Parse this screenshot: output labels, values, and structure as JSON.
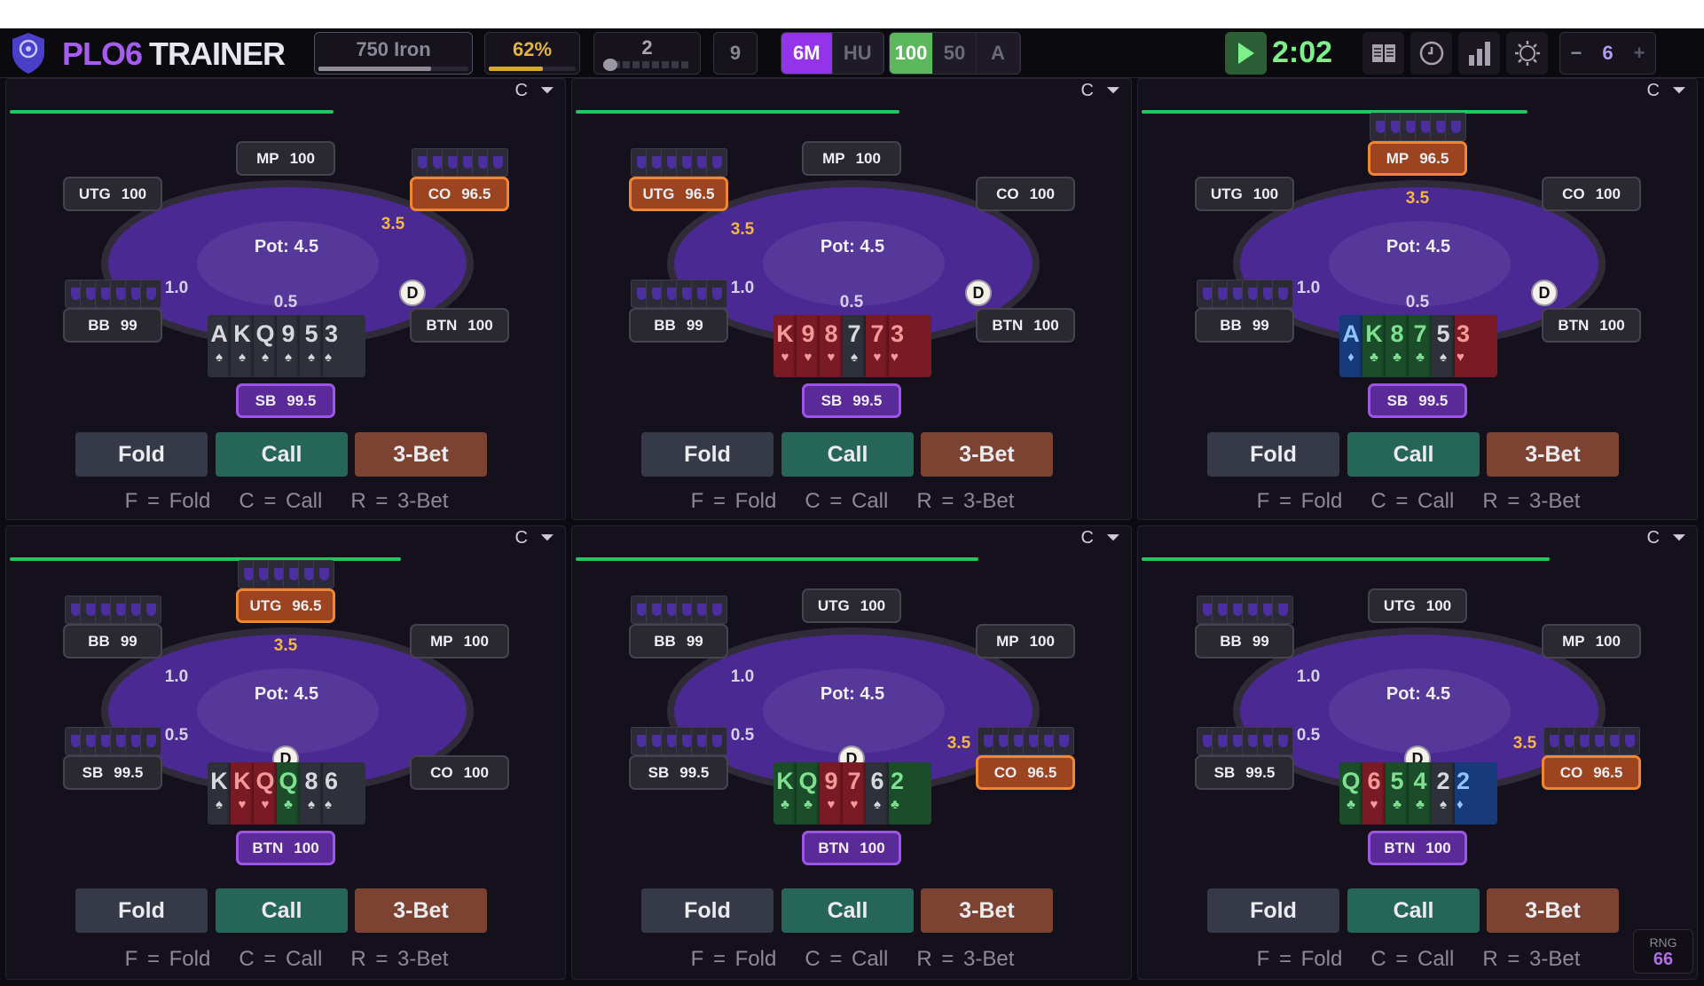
{
  "topbar": {
    "brand_a": "PLO6",
    "brand_b": "TRAINER",
    "rank": "750 Iron",
    "rank_progress": 0.75,
    "accuracy": "62%",
    "accuracy_progress": 0.62,
    "level": "2",
    "level_slider": 0.1,
    "count": "9",
    "modes": [
      {
        "label": "6M",
        "active": true
      },
      {
        "label": "HU",
        "active": false
      }
    ],
    "stacks": [
      {
        "label": "100",
        "active": true
      },
      {
        "label": "50",
        "active": false
      },
      {
        "label": "A",
        "active": false
      }
    ],
    "timer": "2:02",
    "icons": [
      "book-icon",
      "clock-icon",
      "stats-icon",
      "brightness-icon"
    ],
    "tables_minus": "−",
    "tables_count": "6",
    "tables_plus": "+"
  },
  "labels": {
    "pot_prefix": "Pot: ",
    "fold": "Fold",
    "call": "Call",
    "raise": "3-Bet",
    "hint": "F = Fold   C = Call   R = 3-Bet",
    "dealer": "D",
    "refresh": "C",
    "filter": "filter"
  },
  "colors": {
    "hero": "#5a2a99",
    "raiser": "#9c4420",
    "spade": "#2e313a",
    "heart": "#7a1a25",
    "club": "#1b4d2a",
    "diamond": "#173a7a"
  },
  "panels": [
    {
      "timer_progress": 0.58,
      "pot": "4.5",
      "dealer_seat": 5,
      "seats": [
        {
          "pos": "SB",
          "stack": "99.5",
          "state": "hero",
          "bet": "0.5"
        },
        {
          "pos": "BB",
          "stack": "99",
          "state": "in",
          "bet": "1.0"
        },
        {
          "pos": "UTG",
          "stack": "100",
          "state": "folded"
        },
        {
          "pos": "MP",
          "stack": "100",
          "state": "folded"
        },
        {
          "pos": "CO",
          "stack": "96.5",
          "state": "raiser",
          "bet": "3.5"
        },
        {
          "pos": "BTN",
          "stack": "100",
          "state": "folded"
        }
      ],
      "hand": [
        {
          "r": "A",
          "s": "spade"
        },
        {
          "r": "K",
          "s": "spade"
        },
        {
          "r": "Q",
          "s": "spade"
        },
        {
          "r": "9",
          "s": "spade"
        },
        {
          "r": "5",
          "s": "spade"
        },
        {
          "r": "3",
          "s": "spade"
        }
      ]
    },
    {
      "timer_progress": 0.58,
      "pot": "4.5",
      "dealer_seat": 5,
      "seats": [
        {
          "pos": "SB",
          "stack": "99.5",
          "state": "hero",
          "bet": "0.5"
        },
        {
          "pos": "BB",
          "stack": "99",
          "state": "in",
          "bet": "1.0"
        },
        {
          "pos": "UTG",
          "stack": "96.5",
          "state": "raiser",
          "bet": "3.5"
        },
        {
          "pos": "MP",
          "stack": "100",
          "state": "folded"
        },
        {
          "pos": "CO",
          "stack": "100",
          "state": "folded"
        },
        {
          "pos": "BTN",
          "stack": "100",
          "state": "folded"
        }
      ],
      "hand": [
        {
          "r": "K",
          "s": "heart"
        },
        {
          "r": "9",
          "s": "heart"
        },
        {
          "r": "8",
          "s": "heart"
        },
        {
          "r": "7",
          "s": "spade"
        },
        {
          "r": "7",
          "s": "heart"
        },
        {
          "r": "3",
          "s": "heart"
        }
      ]
    },
    {
      "timer_progress": 0.69,
      "pot": "4.5",
      "dealer_seat": 5,
      "seats": [
        {
          "pos": "SB",
          "stack": "99.5",
          "state": "hero",
          "bet": "0.5"
        },
        {
          "pos": "BB",
          "stack": "99",
          "state": "in",
          "bet": "1.0"
        },
        {
          "pos": "UTG",
          "stack": "100",
          "state": "folded"
        },
        {
          "pos": "MP",
          "stack": "96.5",
          "state": "raiser",
          "bet": "3.5"
        },
        {
          "pos": "CO",
          "stack": "100",
          "state": "folded"
        },
        {
          "pos": "BTN",
          "stack": "100",
          "state": "folded"
        }
      ],
      "hand": [
        {
          "r": "A",
          "s": "diamond"
        },
        {
          "r": "K",
          "s": "club"
        },
        {
          "r": "8",
          "s": "club"
        },
        {
          "r": "7",
          "s": "club"
        },
        {
          "r": "5",
          "s": "spade"
        },
        {
          "r": "3",
          "s": "heart"
        }
      ]
    },
    {
      "timer_progress": 0.7,
      "pot": "4.5",
      "dealer_seat": 0,
      "seats": [
        {
          "pos": "BTN",
          "stack": "100",
          "state": "hero"
        },
        {
          "pos": "SB",
          "stack": "99.5",
          "state": "in",
          "bet": "0.5"
        },
        {
          "pos": "BB",
          "stack": "99",
          "state": "in",
          "bet": "1.0"
        },
        {
          "pos": "UTG",
          "stack": "96.5",
          "state": "raiser",
          "bet": "3.5"
        },
        {
          "pos": "MP",
          "stack": "100",
          "state": "folded"
        },
        {
          "pos": "CO",
          "stack": "100",
          "state": "folded"
        }
      ],
      "hand": [
        {
          "r": "K",
          "s": "spade"
        },
        {
          "r": "K",
          "s": "heart"
        },
        {
          "r": "Q",
          "s": "heart"
        },
        {
          "r": "Q",
          "s": "club"
        },
        {
          "r": "8",
          "s": "spade"
        },
        {
          "r": "6",
          "s": "spade"
        }
      ]
    },
    {
      "timer_progress": 0.72,
      "pot": "4.5",
      "dealer_seat": 0,
      "seats": [
        {
          "pos": "BTN",
          "stack": "100",
          "state": "hero"
        },
        {
          "pos": "SB",
          "stack": "99.5",
          "state": "in",
          "bet": "0.5"
        },
        {
          "pos": "BB",
          "stack": "99",
          "state": "in",
          "bet": "1.0"
        },
        {
          "pos": "UTG",
          "stack": "100",
          "state": "folded"
        },
        {
          "pos": "MP",
          "stack": "100",
          "state": "folded"
        },
        {
          "pos": "CO",
          "stack": "96.5",
          "state": "raiser",
          "bet": "3.5"
        }
      ],
      "hand": [
        {
          "r": "K",
          "s": "club"
        },
        {
          "r": "Q",
          "s": "club"
        },
        {
          "r": "9",
          "s": "heart"
        },
        {
          "r": "7",
          "s": "heart"
        },
        {
          "r": "6",
          "s": "spade"
        },
        {
          "r": "2",
          "s": "club"
        }
      ]
    },
    {
      "timer_progress": 0.73,
      "pot": "4.5",
      "dealer_seat": 0,
      "seats": [
        {
          "pos": "BTN",
          "stack": "100",
          "state": "hero"
        },
        {
          "pos": "SB",
          "stack": "99.5",
          "state": "in",
          "bet": "0.5"
        },
        {
          "pos": "BB",
          "stack": "99",
          "state": "in",
          "bet": "1.0"
        },
        {
          "pos": "UTG",
          "stack": "100",
          "state": "folded"
        },
        {
          "pos": "MP",
          "stack": "100",
          "state": "folded"
        },
        {
          "pos": "CO",
          "stack": "96.5",
          "state": "raiser",
          "bet": "3.5"
        }
      ],
      "hand": [
        {
          "r": "Q",
          "s": "club"
        },
        {
          "r": "6",
          "s": "heart"
        },
        {
          "r": "5",
          "s": "club"
        },
        {
          "r": "4",
          "s": "club"
        },
        {
          "r": "2",
          "s": "spade"
        },
        {
          "r": "2",
          "s": "diamond"
        }
      ]
    }
  ],
  "rng": {
    "label": "RNG",
    "value": "66"
  }
}
